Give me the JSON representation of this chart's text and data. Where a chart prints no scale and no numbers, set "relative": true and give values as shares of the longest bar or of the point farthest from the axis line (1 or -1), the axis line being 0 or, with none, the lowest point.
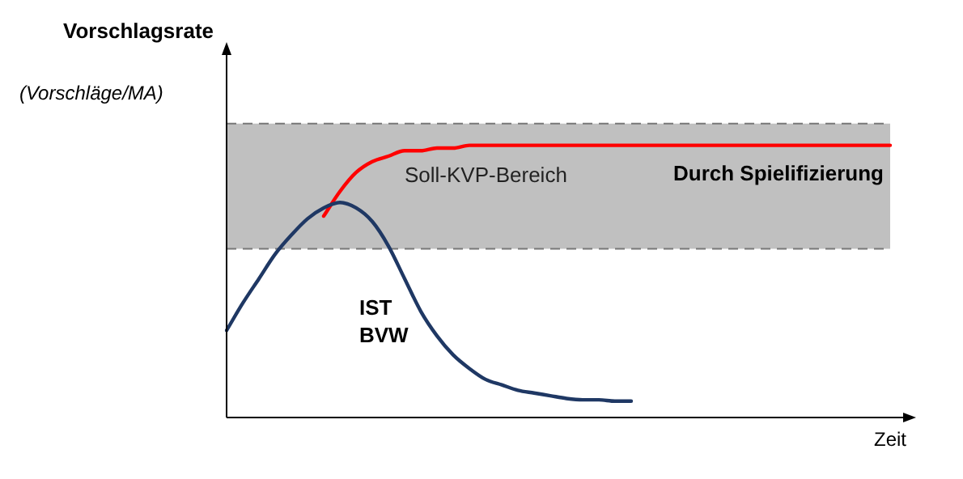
{
  "chart_data": {
    "type": "line",
    "relative": true,
    "ylabel": "Vorschlagsrate",
    "xlabel": "Zeit",
    "annotations": [
      "(Vorschläge/MA)"
    ],
    "categories": [
      null,
      null,
      null,
      null,
      null,
      null,
      null,
      null,
      null,
      null,
      null,
      null,
      null,
      null,
      null,
      null,
      null,
      null,
      null,
      null,
      null,
      null,
      null,
      null,
      null,
      null,
      null,
      null,
      null,
      null,
      null,
      null,
      null,
      null,
      null,
      null,
      null,
      null,
      null,
      null,
      null,
      null
    ],
    "series": [
      {
        "name": "IST BVW",
        "color": "#1f3864",
        "values": [
          0.32,
          0.42,
          0.51,
          0.6,
          0.67,
          0.73,
          0.77,
          0.79,
          0.77,
          0.72,
          0.63,
          0.51,
          0.39,
          0.3,
          0.23,
          0.18,
          0.14,
          0.12,
          0.1,
          0.09,
          0.08,
          0.07,
          0.065,
          0.065,
          0.06,
          0.06,
          null,
          null,
          null,
          null,
          null,
          null,
          null,
          null,
          null,
          null,
          null,
          null,
          null,
          null,
          null,
          null
        ]
      },
      {
        "name": "Durch Spielifizierung",
        "color": "#ff0000",
        "values": [
          null,
          null,
          null,
          null,
          null,
          null,
          0.74,
          0.83,
          0.9,
          0.94,
          0.96,
          0.98,
          0.98,
          0.99,
          0.99,
          1,
          1,
          1,
          1,
          1,
          1,
          1,
          1,
          1,
          1,
          1,
          1,
          1,
          1,
          1,
          1,
          1,
          1,
          1,
          1,
          1,
          1,
          1,
          1,
          1,
          1,
          1
        ]
      }
    ],
    "bands": [
      {
        "axis": "y",
        "from": 0.62,
        "to": 1.08,
        "label": "Soll-KVP-Bereich",
        "color": "#c0c0c0"
      }
    ],
    "ref_lines": [
      {
        "axis": "y",
        "value": 0.62,
        "color": "#777777",
        "line_style": "dashed"
      },
      {
        "axis": "y",
        "value": 1.08,
        "color": "#777777",
        "line_style": "dashed"
      }
    ],
    "grid": false,
    "legend": false,
    "marker": "none",
    "line_style": "solid"
  }
}
